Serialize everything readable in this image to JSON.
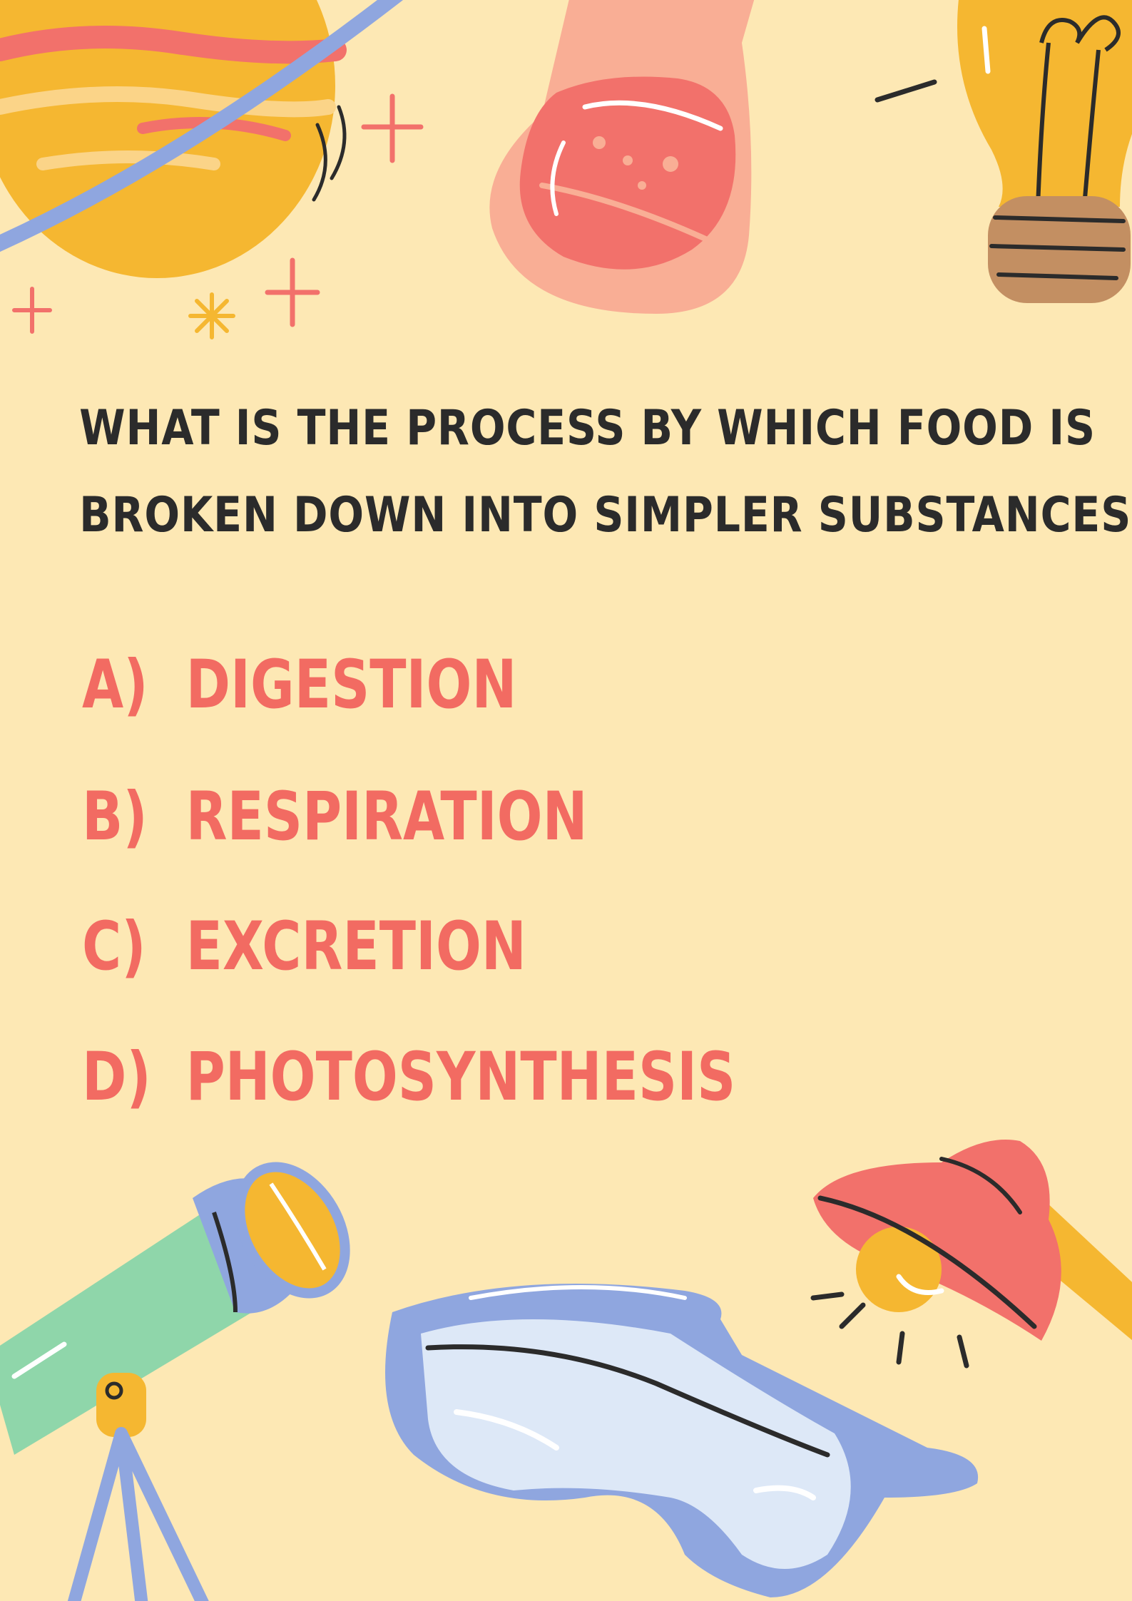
{
  "quiz": {
    "question_line1": "WHAT IS THE PROCESS BY WHICH FOOD IS",
    "question_line2": "BROKEN DOWN INTO SIMPLER SUBSTANCES?",
    "options": [
      {
        "letter": "A)",
        "text": "DIGESTION"
      },
      {
        "letter": "B)",
        "text": "RESPIRATION"
      },
      {
        "letter": "C)",
        "text": "EXCRETION"
      },
      {
        "letter": "D)",
        "text": "PHOTOSYNTHESIS"
      }
    ]
  },
  "decorations": [
    "planet-icon",
    "flask-icon",
    "light-bulb-icon",
    "sparkle-icon",
    "telescope-icon",
    "safety-goggles-icon",
    "lamp-icon"
  ],
  "colors": {
    "background": "#fde8b4",
    "question_text": "#2b2b2b",
    "option_text": "#f26b62",
    "accent_yellow": "#f5b731",
    "accent_blue": "#8fa6df",
    "accent_green": "#8fd6aa"
  }
}
